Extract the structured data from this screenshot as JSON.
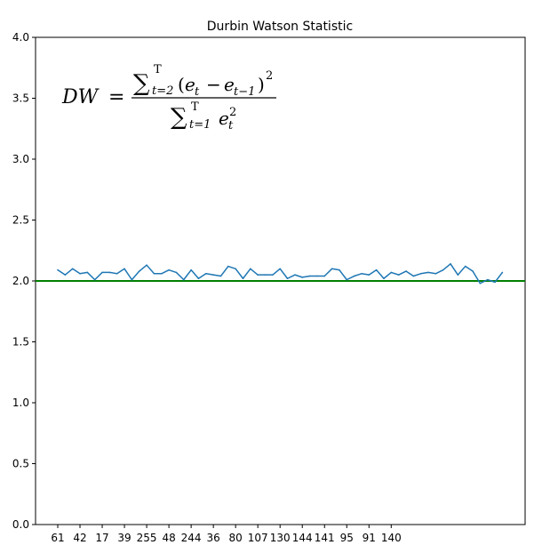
{
  "chart_data": {
    "type": "line",
    "title": "Durbin Watson Statistic",
    "xlabel": "",
    "ylabel": "",
    "ylim": [
      0.0,
      4.0
    ],
    "y_ticks": [
      "0.0",
      "0.5",
      "1.0",
      "1.5",
      "2.0",
      "2.5",
      "3.0",
      "3.5",
      "4.0"
    ],
    "x_tick_labels": [
      "61",
      "42",
      "17",
      "39",
      "255",
      "48",
      "244",
      "36",
      "80",
      "107",
      "130",
      "144",
      "141",
      "95",
      "91",
      "140"
    ],
    "x_tick_every": 3,
    "grid": false,
    "legend": "none",
    "reference_line": {
      "y": 2.0,
      "color": "#008000"
    },
    "series": [
      {
        "color": "#1f77b4",
        "values": [
          2.09,
          2.05,
          2.1,
          2.06,
          2.07,
          2.01,
          2.07,
          2.07,
          2.06,
          2.1,
          2.01,
          2.08,
          2.13,
          2.06,
          2.06,
          2.09,
          2.07,
          2.01,
          2.09,
          2.02,
          2.06,
          2.05,
          2.04,
          2.12,
          2.1,
          2.02,
          2.1,
          2.05,
          2.05,
          2.05,
          2.1,
          2.02,
          2.05,
          2.03,
          2.04,
          2.04,
          2.04,
          2.1,
          2.09,
          2.01,
          2.04,
          2.06,
          2.05,
          2.09,
          2.02,
          2.07,
          2.05,
          2.08,
          2.04,
          2.06,
          2.07,
          2.06,
          2.09,
          2.14,
          2.05,
          2.12,
          2.08,
          1.98,
          2.01,
          1.99,
          2.07
        ]
      }
    ],
    "annotation": {
      "formula": {
        "lhs": "DW",
        "eq": "=",
        "num_sum": "∑",
        "num_sub": "t=2",
        "num_sup": "T",
        "num_body_open": "(",
        "num_e_t": "e",
        "num_e_t_sub": "t",
        "num_minus": "−",
        "num_e_prev": "e",
        "num_e_prev_sub": "t−1",
        "num_body_close": ")",
        "num_power": "2",
        "den_sum": "∑",
        "den_sub": "t=1",
        "den_sup": "T",
        "den_e": "e",
        "den_e_sub": "t",
        "den_e_sup": "2"
      }
    }
  }
}
